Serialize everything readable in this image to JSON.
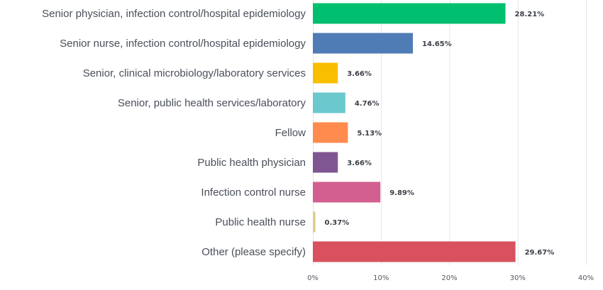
{
  "chart_data": {
    "type": "bar",
    "orientation": "horizontal",
    "categories": [
      "Senior physician, infection control/hospital epidemiology",
      "Senior nurse, infection control/hospital epidemiology",
      "Senior, clinical microbiology/laboratory services",
      "Senior, public health services/laboratory",
      "Fellow",
      "Public health physician",
      "Infection control nurse",
      "Public health nurse",
      "Other (please specify)"
    ],
    "values": [
      28.21,
      14.65,
      3.66,
      4.76,
      5.13,
      3.66,
      9.89,
      0.37,
      29.67
    ],
    "value_labels": [
      "28.21%",
      "14.65%",
      "3.66%",
      "4.76%",
      "5.13%",
      "3.66%",
      "9.89%",
      "0.37%",
      "29.67%"
    ],
    "colors": [
      "#00bf6f",
      "#507cb6",
      "#f9be00",
      "#6bc8cd",
      "#ff8b4f",
      "#7f5691",
      "#d25f90",
      "#dacf85",
      "#d9505e"
    ],
    "xlim": [
      0,
      40
    ],
    "x_ticks": [
      0,
      10,
      20,
      30,
      40
    ],
    "x_tick_labels": [
      "0%",
      "10%",
      "20%",
      "30%",
      "40%"
    ],
    "title": "",
    "xlabel": "",
    "ylabel": "",
    "grid": true,
    "legend": "none"
  }
}
